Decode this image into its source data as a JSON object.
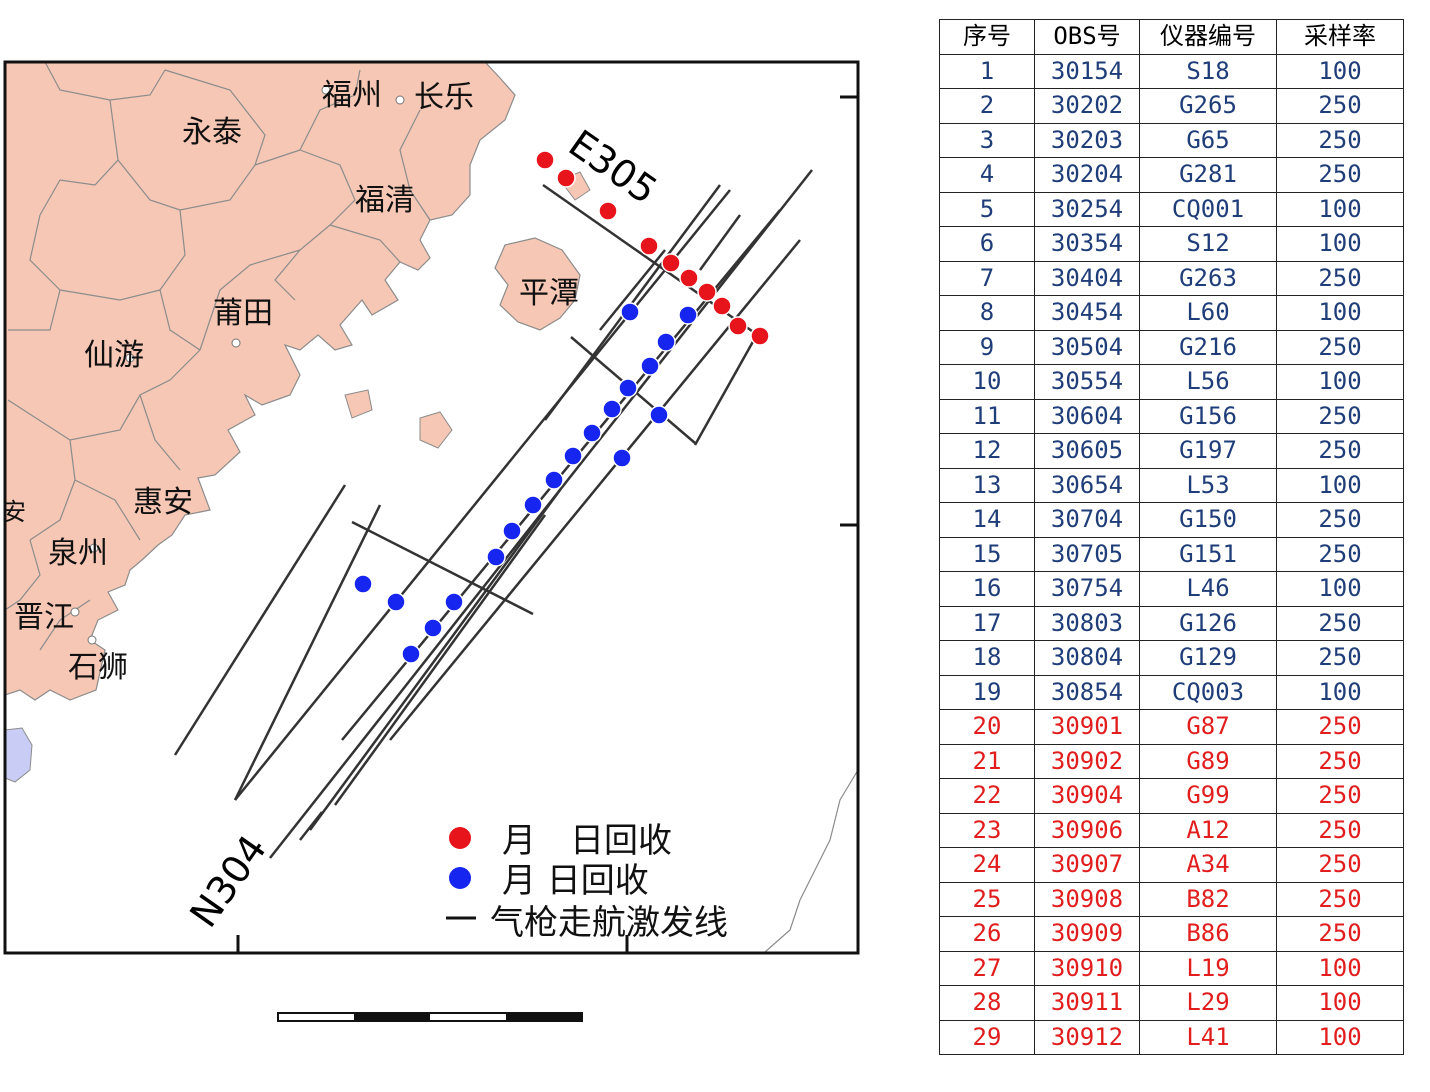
{
  "map": {
    "place_names": [
      "福州",
      "长乐",
      "永泰",
      "福清",
      "平潭",
      "莆田",
      "仙游",
      "惠安",
      "泉州",
      "晋江",
      "石狮",
      "安"
    ],
    "line_labels": [
      "E305",
      "N304"
    ],
    "legend": [
      {
        "symbol": "red-dot",
        "label": "月　日回收",
        "color": "#e8141c"
      },
      {
        "symbol": "blue-dot",
        "label": "月 日回收",
        "color": "#1626f0"
      },
      {
        "symbol": "line",
        "label": "气枪走航激发线",
        "color": "#111111"
      }
    ],
    "colors": {
      "land": "#f6c7b4",
      "land_border": "#8c8c8c",
      "sea": "#ffffff",
      "taiwan_island": "#c9cdf5",
      "red_station": "#e8141c",
      "blue_station": "#1626f0"
    }
  },
  "table": {
    "headers": [
      "序号",
      "OBS号",
      "仪器编号",
      "采样率"
    ],
    "rows": [
      {
        "n": "1",
        "obs": "30154",
        "id": "S18",
        "rate": "100",
        "status": "blue"
      },
      {
        "n": "2",
        "obs": "30202",
        "id": "G265",
        "rate": "250",
        "status": "blue"
      },
      {
        "n": "3",
        "obs": "30203",
        "id": "G65",
        "rate": "250",
        "status": "blue"
      },
      {
        "n": "4",
        "obs": "30204",
        "id": "G281",
        "rate": "250",
        "status": "blue"
      },
      {
        "n": "5",
        "obs": "30254",
        "id": "CQ001",
        "rate": "100",
        "status": "blue"
      },
      {
        "n": "6",
        "obs": "30354",
        "id": "S12",
        "rate": "100",
        "status": "blue"
      },
      {
        "n": "7",
        "obs": "30404",
        "id": "G263",
        "rate": "250",
        "status": "blue"
      },
      {
        "n": "8",
        "obs": "30454",
        "id": "L60",
        "rate": "100",
        "status": "blue"
      },
      {
        "n": "9",
        "obs": "30504",
        "id": "G216",
        "rate": "250",
        "status": "blue"
      },
      {
        "n": "10",
        "obs": "30554",
        "id": "L56",
        "rate": "100",
        "status": "blue"
      },
      {
        "n": "11",
        "obs": "30604",
        "id": "G156",
        "rate": "250",
        "status": "blue"
      },
      {
        "n": "12",
        "obs": "30605",
        "id": "G197",
        "rate": "250",
        "status": "blue"
      },
      {
        "n": "13",
        "obs": "30654",
        "id": "L53",
        "rate": "100",
        "status": "blue"
      },
      {
        "n": "14",
        "obs": "30704",
        "id": "G150",
        "rate": "250",
        "status": "blue"
      },
      {
        "n": "15",
        "obs": "30705",
        "id": "G151",
        "rate": "250",
        "status": "blue"
      },
      {
        "n": "16",
        "obs": "30754",
        "id": "L46",
        "rate": "100",
        "status": "blue"
      },
      {
        "n": "17",
        "obs": "30803",
        "id": "G126",
        "rate": "250",
        "status": "blue"
      },
      {
        "n": "18",
        "obs": "30804",
        "id": "G129",
        "rate": "250",
        "status": "blue"
      },
      {
        "n": "19",
        "obs": "30854",
        "id": "CQ003",
        "rate": "100",
        "status": "blue"
      },
      {
        "n": "20",
        "obs": "30901",
        "id": "G87",
        "rate": "250",
        "status": "red"
      },
      {
        "n": "21",
        "obs": "30902",
        "id": "G89",
        "rate": "250",
        "status": "red"
      },
      {
        "n": "22",
        "obs": "30904",
        "id": "G99",
        "rate": "250",
        "status": "red"
      },
      {
        "n": "23",
        "obs": "30906",
        "id": "A12",
        "rate": "250",
        "status": "red"
      },
      {
        "n": "24",
        "obs": "30907",
        "id": "A34",
        "rate": "250",
        "status": "red"
      },
      {
        "n": "25",
        "obs": "30908",
        "id": "B82",
        "rate": "250",
        "status": "red"
      },
      {
        "n": "26",
        "obs": "30909",
        "id": "B86",
        "rate": "250",
        "status": "red"
      },
      {
        "n": "27",
        "obs": "30910",
        "id": "L19",
        "rate": "100",
        "status": "red"
      },
      {
        "n": "28",
        "obs": "30911",
        "id": "L29",
        "rate": "100",
        "status": "red"
      },
      {
        "n": "29",
        "obs": "30912",
        "id": "L41",
        "rate": "100",
        "status": "red"
      }
    ]
  }
}
